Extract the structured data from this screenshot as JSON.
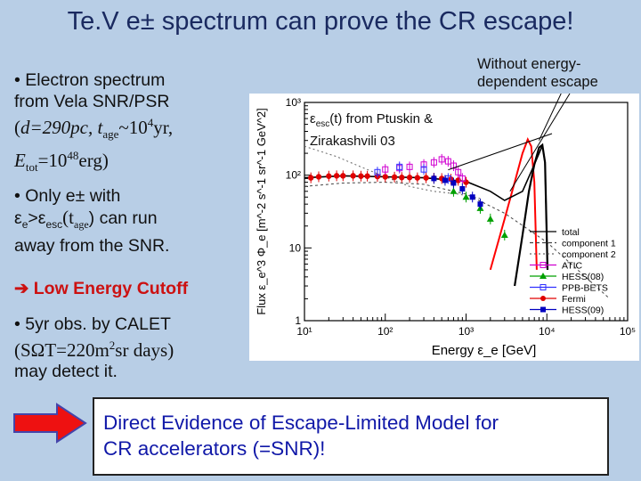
{
  "title": "Te.V e± spectrum can prove the CR escape!",
  "bullet1": {
    "line1": "• Electron spectrum",
    "line2": "from Vela SNR/PSR",
    "d_eq": "d=290pc, t",
    "age_sub": "age",
    "tilde": "~10",
    "exp4": "4",
    "yr": "yr,",
    "etot": "E",
    "tot_sub": "tot",
    "eq10": "=10",
    "exp48": "48",
    "erg": "erg)",
    "open_paren": "("
  },
  "bullet2": {
    "line1": "• Only e± with",
    "eps": "ε",
    "e_sub": "e",
    "gt": ">ε",
    "esc_sub": "esc",
    "targ": "(t",
    "age_sub": "age",
    "close": ") can run",
    "line3": "away from the SNR."
  },
  "cutoff_label": "Low Energy Cutoff",
  "bullet3": {
    "line1": "• 5yr obs. by CALET",
    "paren_open": "(SΩT=220m",
    "exp2": "2",
    "rest": "sr days)",
    "line3": "may detect it."
  },
  "note_esc": {
    "eps": "ε",
    "sub": "esc",
    "text1": "(t) from Ptuskin &",
    "text2": "Zirakashvili 03"
  },
  "note_noesc": {
    "line1": "Without energy-",
    "line2": "dependent escape"
  },
  "conclusion": {
    "line1": "Direct Evidence of Escape-Limited Model for",
    "line2": "CR accelerators (=SNR)!"
  },
  "chart_data": {
    "type": "scatter",
    "title": "",
    "xlabel": "Energy ε_e [GeV]",
    "ylabel": "Flux ε_e^3 Φ_e [m^-2 s^-1 sr^-1 GeV^2]",
    "xlim": [
      10,
      100000
    ],
    "ylim": [
      1,
      1000
    ],
    "x_scale": "log",
    "y_scale": "log",
    "x_ticks": [
      "10¹",
      "10²",
      "10³",
      "10⁴",
      "10⁵"
    ],
    "y_ticks": [
      "1",
      "10",
      "10²",
      "10³"
    ],
    "legend": [
      "total",
      "component 1",
      "component 2",
      "ATIC",
      "HESS(08)",
      "PPB-BETS",
      "Fermi",
      "HESS(09)"
    ],
    "legend_position": "bottom-right",
    "colors": {
      "atic": "#d000d0",
      "hess08": "#00a000",
      "ppb": "#3030ff",
      "fermi": "#e00000",
      "hess09": "#0000c0",
      "redmodel": "#ff0000"
    },
    "series": [
      {
        "name": "Fermi",
        "x": [
          12,
          15,
          20,
          25,
          30,
          40,
          50,
          60,
          80,
          100,
          130,
          160,
          200,
          250,
          320,
          400,
          500,
          650,
          800,
          1000
        ],
        "y": [
          92,
          95,
          97,
          98,
          98,
          98,
          97,
          97,
          96,
          95,
          94,
          93,
          93,
          92,
          92,
          91,
          90,
          88,
          85,
          80
        ]
      },
      {
        "name": "ATIC",
        "x": [
          100,
          150,
          200,
          300,
          400,
          500,
          600,
          700,
          800,
          900
        ],
        "y": [
          120,
          125,
          130,
          140,
          150,
          165,
          155,
          135,
          110,
          90
        ]
      },
      {
        "name": "HESS(08)",
        "x": [
          700,
          1000,
          1500,
          2000,
          3000
        ],
        "y": [
          60,
          50,
          35,
          25,
          15
        ]
      },
      {
        "name": "PPB-BETS",
        "x": [
          80,
          150,
          300,
          600
        ],
        "y": [
          110,
          130,
          120,
          90
        ]
      },
      {
        "name": "HESS(09)",
        "x": [
          400,
          550,
          700,
          900,
          1200,
          1500
        ],
        "y": [
          90,
          85,
          78,
          65,
          50,
          40
        ]
      },
      {
        "name": "no-escape-model",
        "x": [
          2000,
          3000,
          4000,
          5000,
          5800,
          6400,
          7000,
          7500
        ],
        "y": [
          5,
          25,
          80,
          200,
          310,
          250,
          80,
          5
        ]
      },
      {
        "name": "escape-model",
        "x": [
          4000,
          5000,
          6000,
          7000,
          8000,
          8800,
          9500,
          10200
        ],
        "y": [
          3,
          15,
          60,
          140,
          240,
          260,
          150,
          5
        ]
      }
    ]
  }
}
